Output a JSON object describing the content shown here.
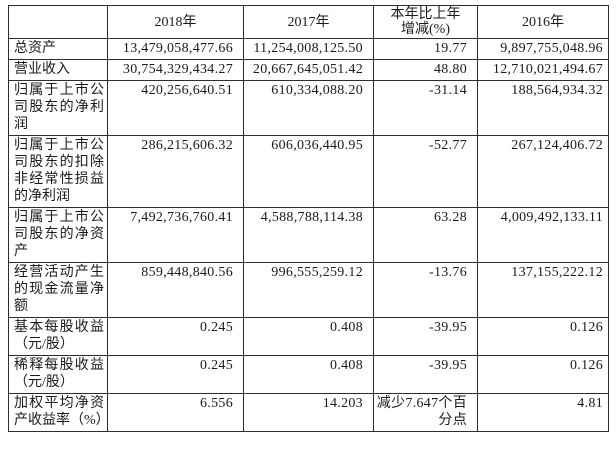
{
  "table": {
    "headers": [
      "",
      "2018年",
      "2017年",
      "本年比上年\n增减(%)",
      "2016年"
    ],
    "rows": [
      {
        "label": "总资产",
        "values": [
          "13,479,058,477.66",
          "11,254,008,125.50",
          "19.77",
          "9,897,755,048.96"
        ]
      },
      {
        "label": "营业收入",
        "values": [
          "30,754,329,434.27",
          "20,667,645,051.42",
          "48.80",
          "12,710,021,494.67"
        ]
      },
      {
        "label": "归属于上市公司股东的净利润",
        "values": [
          "420,256,640.51",
          "610,334,088.20",
          "-31.14",
          "188,564,934.32"
        ]
      },
      {
        "label": "归属于上市公司股东的扣除非经常性损益的净利润",
        "values": [
          "286,215,606.32",
          "606,036,440.95",
          "-52.77",
          "267,124,406.72"
        ]
      },
      {
        "label": "归属于上市公司股东的净资产",
        "values": [
          "7,492,736,760.41",
          "4,588,788,114.38",
          "63.28",
          "4,009,492,133.11"
        ]
      },
      {
        "label": "经营活动产生的现金流量净额",
        "values": [
          "859,448,840.56",
          "996,555,259.12",
          "-13.76",
          "137,155,222.12"
        ]
      },
      {
        "label": "基本每股收益（元/股）",
        "values": [
          "0.245",
          "0.408",
          "-39.95",
          "0.126"
        ]
      },
      {
        "label": "稀释每股收益（元/股）",
        "values": [
          "0.245",
          "0.408",
          "-39.95",
          "0.126"
        ]
      },
      {
        "label": "加权平均净资产收益率（%）",
        "values": [
          "6.556",
          "14.203",
          "减少7.647个百分点",
          "4.81"
        ]
      }
    ]
  },
  "colors": {
    "background": "#ffffff",
    "text": "#1b1b1b",
    "border": "#2d2d2d"
  }
}
